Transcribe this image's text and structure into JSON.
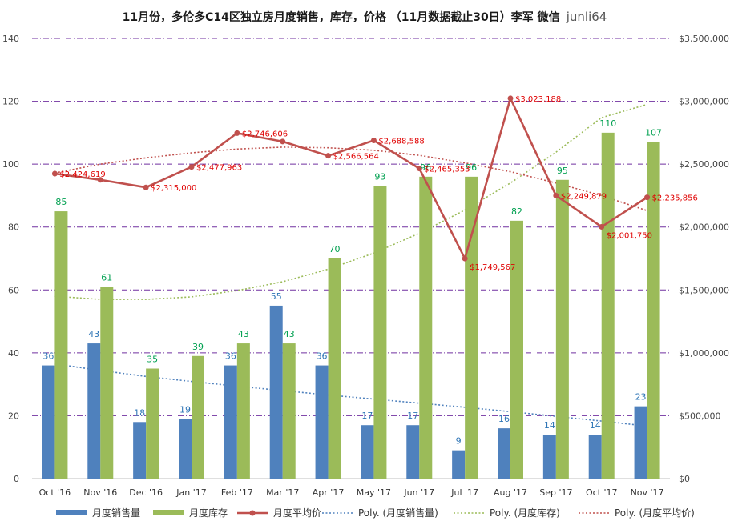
{
  "title": {
    "main": "11月份，多伦多C14区独立房月度销售，库存，价格 （11月数据截止30日）李军 微信",
    "tail": "junli64"
  },
  "colors": {
    "sales": "#4f81bd",
    "sales_label": "#2e75b6",
    "inventory": "#9bbb59",
    "inventory_label": "#00a050",
    "price": "#c0504d",
    "price_label": "#e00000",
    "grid": "#7030a0",
    "trend_sales": "#4f81bd",
    "trend_inventory": "#9bbb59",
    "trend_price": "#c0504d"
  },
  "chart_data": {
    "type": "bar",
    "categories": [
      "Oct '16",
      "Nov '16",
      "Dec '16",
      "Jan '17",
      "Feb '17",
      "Mar '17",
      "Apr '17",
      "May '17",
      "Jun '17",
      "Jul '17",
      "Aug '17",
      "Sep '17",
      "Oct '17",
      "Nov '17"
    ],
    "series": [
      {
        "name": "月度销售量",
        "type": "bar",
        "axis": "left",
        "values": [
          36,
          43,
          18,
          19,
          36,
          55,
          36,
          17,
          17,
          9,
          16,
          14,
          14,
          23
        ],
        "labels": [
          "36",
          "43",
          "18",
          "19",
          "36",
          "55",
          "36",
          "17",
          "17",
          "9",
          "16",
          "14",
          "14",
          "23"
        ]
      },
      {
        "name": "月度库存",
        "type": "bar",
        "axis": "left",
        "values": [
          85,
          61,
          35,
          39,
          43,
          43,
          70,
          93,
          96,
          96,
          82,
          95,
          110,
          107
        ],
        "labels": [
          "85",
          "61",
          "35",
          "39",
          "43",
          "43",
          "70",
          "93",
          "96",
          "96",
          "82",
          "95",
          "110",
          "107"
        ]
      },
      {
        "name": "月度平均价",
        "type": "line",
        "axis": "right",
        "values": [
          2424619,
          2375000,
          2315000,
          2477963,
          2746606,
          2680000,
          2566564,
          2688588,
          2465353,
          1749567,
          3023188,
          2249879,
          2001750,
          2235856
        ],
        "labels": [
          "$2,424,619",
          "",
          "$2,315,000",
          "$2,477,963",
          "$2,746,606",
          "",
          "$2,566,564",
          "$2,688,588",
          "$2,465,353",
          "$1,749,567",
          "$3,023,188",
          "$2,249,879",
          "$2,001,750",
          "$2,235,856"
        ]
      }
    ],
    "trendlines": [
      {
        "name": "Poly. (月度销售量)",
        "axis": "left",
        "values": [
          36.5,
          34.4,
          32.5,
          30.9,
          29.4,
          28.0,
          26.6,
          25.3,
          24.0,
          22.7,
          21.3,
          19.8,
          18.3,
          16.7
        ]
      },
      {
        "name": "Poly. (月度库存)",
        "axis": "left",
        "values": [
          58.0,
          57.0,
          57.0,
          57.8,
          59.8,
          62.6,
          66.6,
          71.7,
          78.0,
          85.4,
          94.0,
          103.8,
          114.8,
          119.0
        ]
      },
      {
        "name": "Poly. (月度平均价)",
        "axis": "right",
        "values": [
          2430000,
          2500000,
          2550000,
          2590000,
          2620000,
          2635000,
          2630000,
          2610000,
          2570000,
          2510000,
          2440000,
          2350000,
          2250000,
          2130000
        ]
      }
    ],
    "left_axis": {
      "min": 0,
      "max": 140,
      "step": 20,
      "ticks": [
        "0",
        "20",
        "40",
        "60",
        "80",
        "100",
        "120",
        "140"
      ]
    },
    "right_axis": {
      "min": 0,
      "max": 3500000,
      "step": 500000,
      "ticks": [
        "$0",
        "$500,000",
        "$1,000,000",
        "$1,500,000",
        "$2,000,000",
        "$2,500,000",
        "$3,000,000",
        "$3,500,000"
      ]
    },
    "grid": true,
    "legend_position": "bottom",
    "legend": [
      {
        "name": "月度销售量",
        "kind": "bar",
        "color_key": "sales"
      },
      {
        "name": "月度库存",
        "kind": "bar",
        "color_key": "inventory"
      },
      {
        "name": "月度平均价",
        "kind": "line-marker",
        "color_key": "price"
      },
      {
        "name": "Poly. (月度销售量)",
        "kind": "dotted",
        "color_key": "trend_sales"
      },
      {
        "name": "Poly. (月度库存)",
        "kind": "dotted",
        "color_key": "trend_inventory"
      },
      {
        "name": "Poly. (月度平均价)",
        "kind": "dotted",
        "color_key": "trend_price"
      }
    ]
  }
}
